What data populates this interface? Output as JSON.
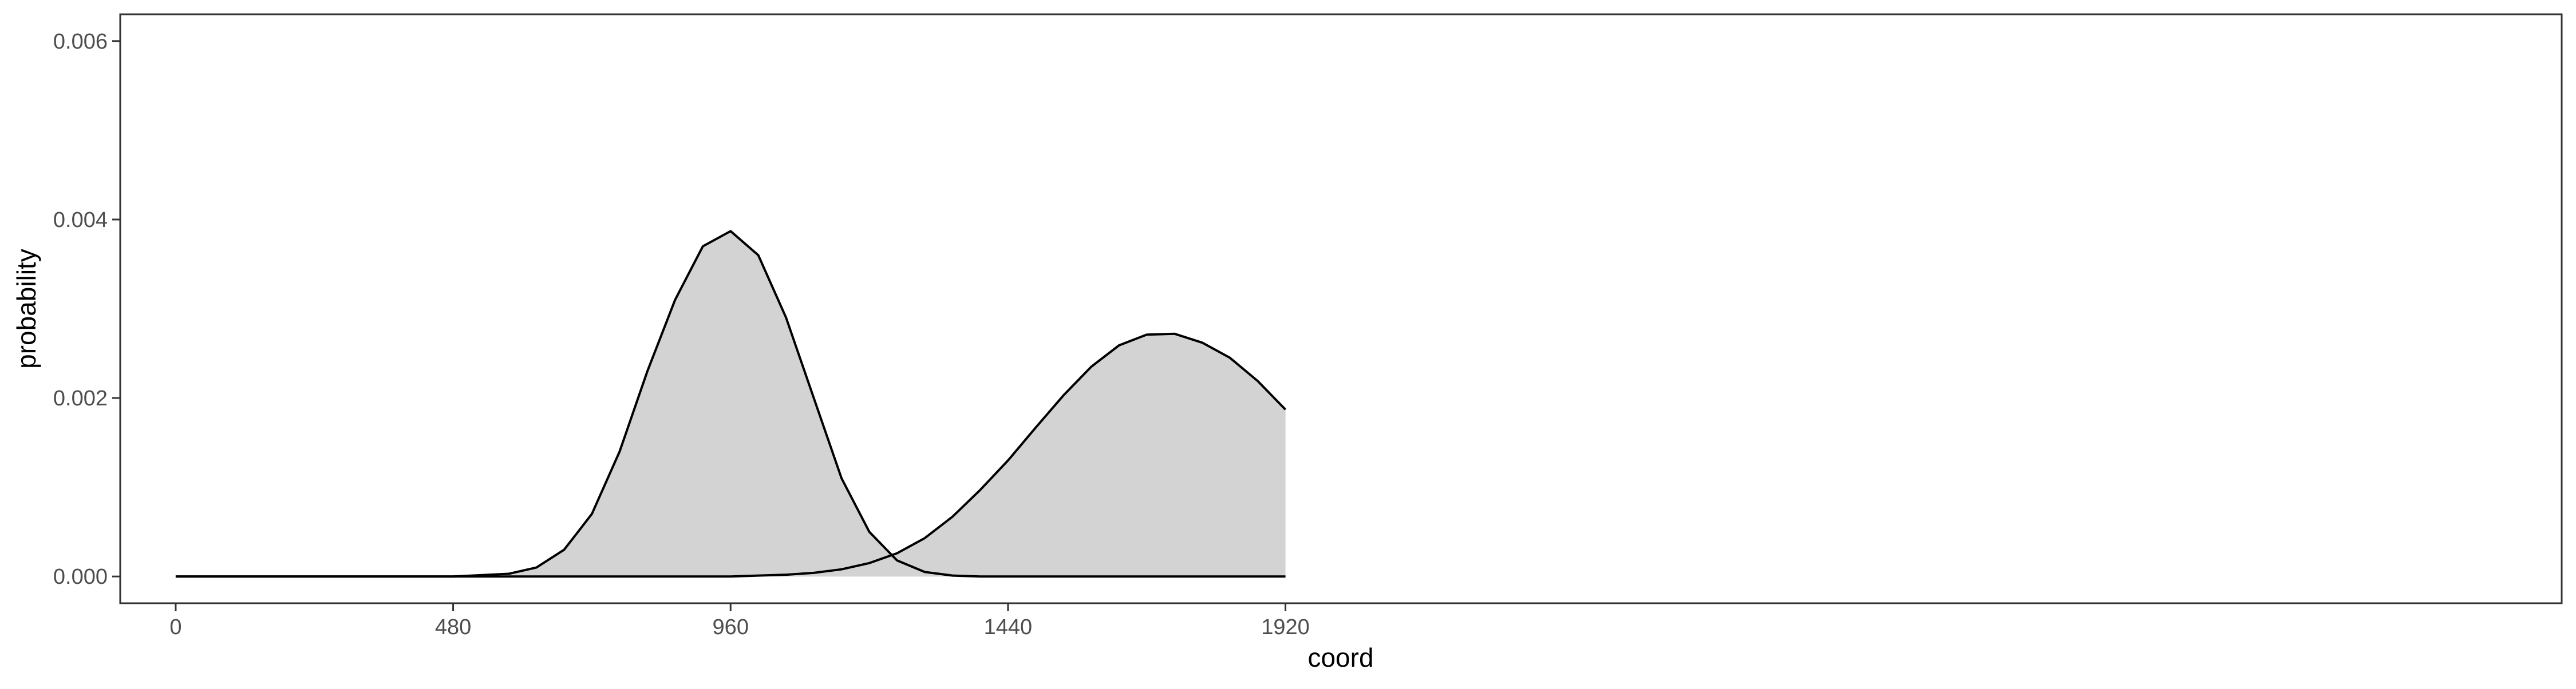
{
  "chart_data": {
    "type": "area",
    "title": "",
    "xlabel": "coord",
    "ylabel": "probability",
    "xlim": [
      -96,
      4128
    ],
    "ylim": [
      -0.0003,
      0.0063
    ],
    "x_ticks": [
      0,
      480,
      960,
      1440,
      1920
    ],
    "x_tick_labels": [
      "0",
      "480",
      "960",
      "1440",
      "1920"
    ],
    "y_ticks": [
      0.0,
      0.002,
      0.004,
      0.006
    ],
    "y_tick_labels": [
      "0.000",
      "0.002",
      "0.004",
      "0.006"
    ],
    "grid": false,
    "legend": "none",
    "series": [
      {
        "x": [
          0,
          96,
          192,
          288,
          384,
          480,
          576,
          624,
          672,
          720,
          768,
          816,
          864,
          912,
          960,
          1008,
          1056,
          1104,
          1152,
          1200,
          1248,
          1296,
          1344,
          1392,
          1440,
          1488,
          1536,
          1584,
          1632,
          1680,
          1728,
          1776,
          1824,
          1872,
          1920
        ],
        "y": [
          0.0,
          0.0,
          0.0,
          0.0,
          0.0,
          0.0,
          3e-05,
          0.0001,
          0.0003,
          0.0007,
          0.0014,
          0.0023,
          0.0031,
          0.0037,
          0.00387,
          0.0036,
          0.0029,
          0.002,
          0.0011,
          0.0005,
          0.00018,
          5e-05,
          1e-05,
          0.0,
          0.0,
          0.0,
          0.0,
          0.0,
          0.0,
          0.0,
          0.0,
          0.0,
          0.0,
          0.0,
          0.0
        ]
      },
      {
        "x": [
          0,
          96,
          192,
          288,
          384,
          480,
          576,
          672,
          768,
          864,
          960,
          1008,
          1056,
          1104,
          1152,
          1200,
          1248,
          1296,
          1344,
          1392,
          1440,
          1488,
          1536,
          1584,
          1632,
          1680,
          1728,
          1776,
          1824,
          1872,
          1920
        ],
        "y": [
          0.0,
          0.0,
          0.0,
          0.0,
          0.0,
          0.0,
          0.0,
          0.0,
          0.0,
          0.0,
          0.0,
          1e-05,
          2e-05,
          4e-05,
          8e-05,
          0.00015,
          0.00026,
          0.00043,
          0.00067,
          0.00097,
          0.0013,
          0.00167,
          0.00203,
          0.00235,
          0.00259,
          0.00271,
          0.00272,
          0.00262,
          0.00245,
          0.00219,
          0.00187
        ]
      }
    ]
  }
}
